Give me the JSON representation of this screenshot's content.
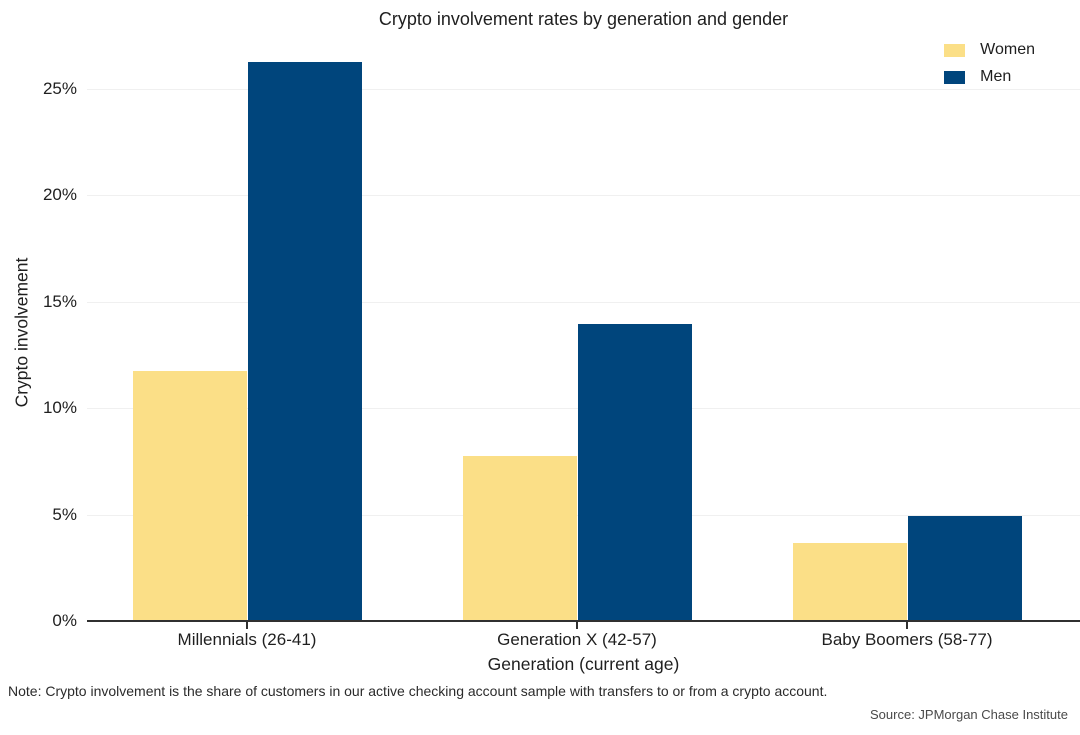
{
  "title": "Crypto involvement rates by generation and gender",
  "colors": {
    "women": "#FBDF87",
    "men": "#00457C",
    "axis_line": "#303030",
    "gridline": "#F0F0F0",
    "text": "#1F1F1F",
    "source_text": "#4A4A4A"
  },
  "chart_data": {
    "type": "bar",
    "title": "Crypto involvement rates by generation and gender",
    "xlabel": "Generation (current age)",
    "ylabel": "Crypto involvement",
    "categories": [
      "Millennials (26-41)",
      "Generation X (42-57)",
      "Baby Boomers (58-77)"
    ],
    "series": [
      {
        "name": "Women",
        "color": "#FBDF87",
        "values": [
          11.8,
          7.8,
          3.7
        ]
      },
      {
        "name": "Men",
        "color": "#00457C",
        "values": [
          26.3,
          14.0,
          5.0
        ]
      }
    ],
    "y_ticks": [
      {
        "value": 0,
        "label": "0%"
      },
      {
        "value": 5,
        "label": "5%"
      },
      {
        "value": 10,
        "label": "10%"
      },
      {
        "value": 15,
        "label": "15%"
      },
      {
        "value": 20,
        "label": "20%"
      },
      {
        "value": 25,
        "label": "25%"
      }
    ],
    "ylim": [
      0,
      27.5
    ],
    "grid": true,
    "legend_position": "top-right"
  },
  "footer": {
    "note": "Note: Crypto involvement is the share of customers in our active checking account sample with transfers to or from a crypto account.",
    "source": "Source: JPMorgan Chase Institute"
  }
}
